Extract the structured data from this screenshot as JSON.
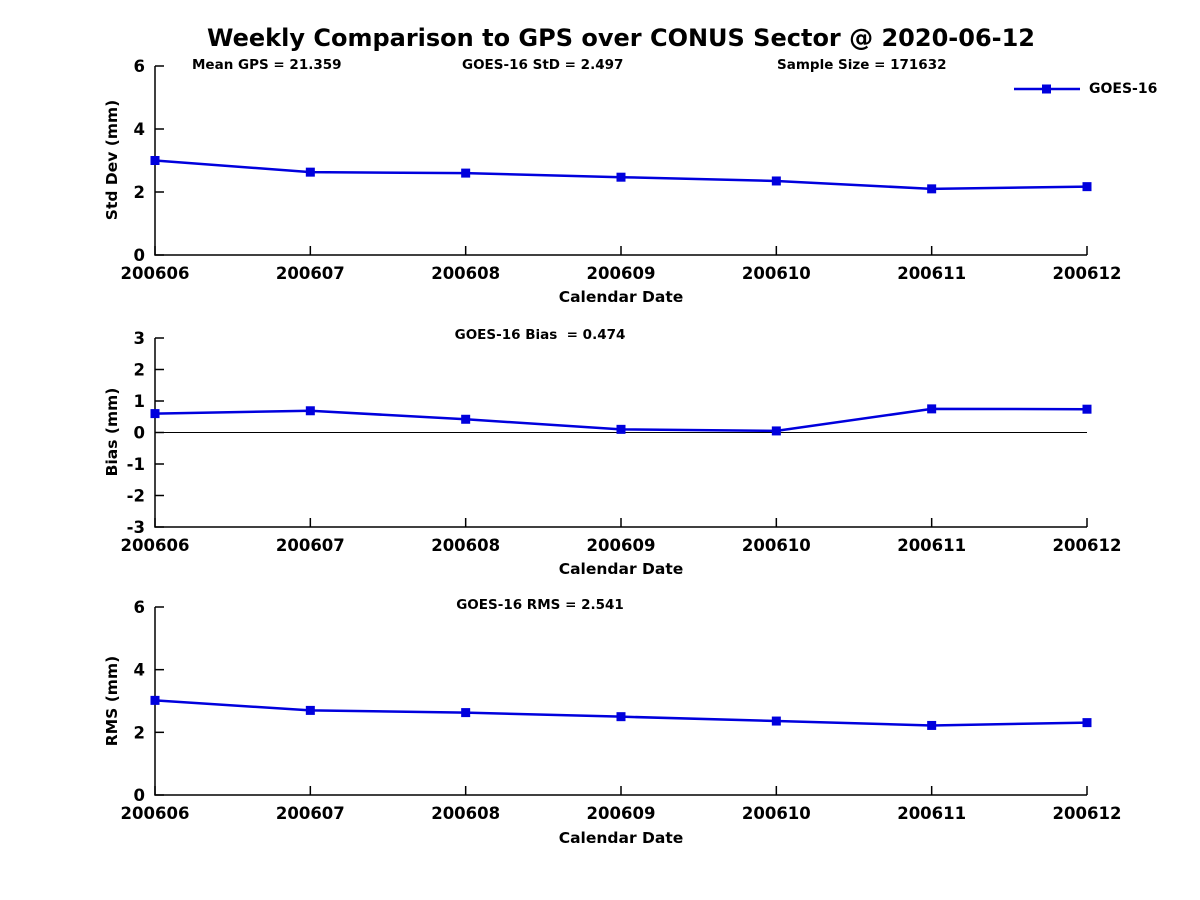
{
  "figure": {
    "title": "Weekly Comparison to GPS over CONUS Sector @ 2020-06-12",
    "annotations": {
      "mean_gps": "Mean GPS = 21.359",
      "std": "GOES-16 StD = 2.497",
      "sample_size": "Sample Size = 171632"
    },
    "legend": {
      "label": "GOES-16",
      "color": "#0000dd",
      "position": "top-right"
    }
  },
  "colors": {
    "line": "#0000dd",
    "axis": "#000000",
    "text": "#000000",
    "background": "#ffffff"
  },
  "chart_data": [
    {
      "type": "line",
      "name": "std-dev",
      "subtitle": "",
      "categories": [
        "200606",
        "200607",
        "200608",
        "200609",
        "200610",
        "200611",
        "200612"
      ],
      "series": [
        {
          "name": "GOES-16",
          "color": "#0000dd",
          "marker": "square",
          "values": [
            3.0,
            2.63,
            2.6,
            2.47,
            2.35,
            2.1,
            2.17
          ]
        }
      ],
      "xlabel": "Calendar Date",
      "ylabel": "Std Dev (mm)",
      "ylim": [
        0,
        6
      ],
      "yticks": [
        0,
        2,
        4,
        6
      ],
      "zero_line": false,
      "grid": false,
      "legend_position": "top-right"
    },
    {
      "type": "line",
      "name": "bias",
      "subtitle": "GOES-16 Bias  = 0.474",
      "categories": [
        "200606",
        "200607",
        "200608",
        "200609",
        "200610",
        "200611",
        "200612"
      ],
      "series": [
        {
          "name": "GOES-16",
          "color": "#0000dd",
          "marker": "square",
          "values": [
            0.6,
            0.69,
            0.42,
            0.1,
            0.05,
            0.75,
            0.74
          ]
        }
      ],
      "xlabel": "Calendar Date",
      "ylabel": "Bias (mm)",
      "ylim": [
        -3,
        3
      ],
      "yticks": [
        3,
        2,
        1,
        0,
        -1,
        -2,
        -3
      ],
      "zero_line": true,
      "grid": false,
      "legend_position": "none"
    },
    {
      "type": "line",
      "name": "rms",
      "subtitle": "GOES-16 RMS = 2.541",
      "categories": [
        "200606",
        "200607",
        "200608",
        "200609",
        "200610",
        "200611",
        "200612"
      ],
      "series": [
        {
          "name": "GOES-16",
          "color": "#0000dd",
          "marker": "square",
          "values": [
            3.02,
            2.7,
            2.63,
            2.5,
            2.36,
            2.22,
            2.31
          ]
        }
      ],
      "xlabel": "Calendar Date",
      "ylabel": "RMS (mm)",
      "ylim": [
        0,
        6
      ],
      "yticks": [
        0,
        2,
        4,
        6
      ],
      "zero_line": false,
      "grid": false,
      "legend_position": "none"
    }
  ]
}
